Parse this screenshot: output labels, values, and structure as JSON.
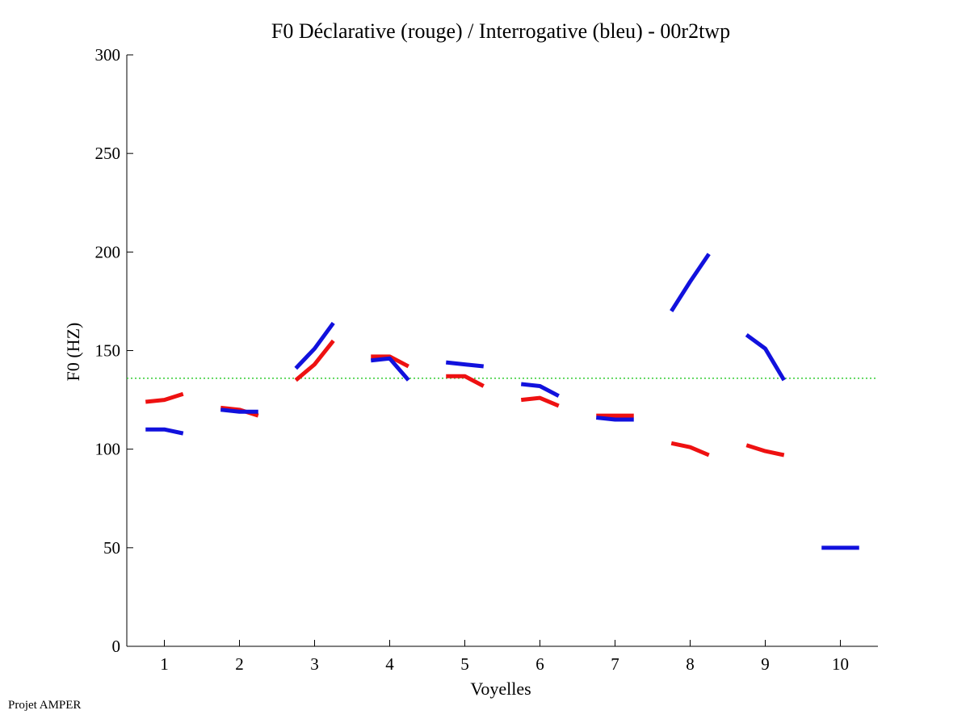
{
  "footer": "Projet AMPER",
  "chart_data": {
    "type": "line",
    "title": "F0 Déclarative (rouge) / Interrogative (bleu) - 00r2twp",
    "xlabel": "Voyelles",
    "ylabel": "F0 (HZ)",
    "xlim": [
      0.5,
      10.5
    ],
    "ylim": [
      0,
      300
    ],
    "x_ticks": [
      1,
      2,
      3,
      4,
      5,
      6,
      7,
      8,
      9,
      10
    ],
    "y_ticks": [
      0,
      50,
      100,
      150,
      200,
      250,
      300
    ],
    "grid": false,
    "reference_line": {
      "y": 136,
      "color": "#33cc33",
      "style": "dotted"
    },
    "series": [
      {
        "color": "#ee1111",
        "segments": [
          {
            "x": [
              0.75,
              1.0,
              1.25
            ],
            "y": [
              124,
              125,
              128
            ]
          },
          {
            "x": [
              1.75,
              2.0,
              2.25
            ],
            "y": [
              121,
              120,
              117
            ]
          },
          {
            "x": [
              2.75,
              3.0,
              3.25
            ],
            "y": [
              135,
              143,
              155
            ]
          },
          {
            "x": [
              3.75,
              4.0,
              4.25
            ],
            "y": [
              147,
              147,
              142
            ]
          },
          {
            "x": [
              4.75,
              5.0,
              5.25
            ],
            "y": [
              137,
              137,
              132
            ]
          },
          {
            "x": [
              5.75,
              6.0,
              6.25
            ],
            "y": [
              125,
              126,
              122
            ]
          },
          {
            "x": [
              6.75,
              7.0,
              7.25
            ],
            "y": [
              117,
              117,
              117
            ]
          },
          {
            "x": [
              7.75,
              8.0,
              8.25
            ],
            "y": [
              103,
              101,
              97
            ]
          },
          {
            "x": [
              8.75,
              9.0,
              9.25
            ],
            "y": [
              102,
              99,
              97
            ]
          }
        ]
      },
      {
        "color": "#1111dd",
        "segments": [
          {
            "x": [
              0.75,
              1.0,
              1.25
            ],
            "y": [
              110,
              110,
              108
            ]
          },
          {
            "x": [
              1.75,
              2.0,
              2.25
            ],
            "y": [
              120,
              119,
              119
            ]
          },
          {
            "x": [
              2.75,
              3.0,
              3.25
            ],
            "y": [
              141,
              151,
              164
            ]
          },
          {
            "x": [
              3.75,
              4.0,
              4.25
            ],
            "y": [
              145,
              146,
              135
            ]
          },
          {
            "x": [
              4.75,
              5.0,
              5.25
            ],
            "y": [
              144,
              143,
              142
            ]
          },
          {
            "x": [
              5.75,
              6.0,
              6.25
            ],
            "y": [
              133,
              132,
              127
            ]
          },
          {
            "x": [
              6.75,
              7.0,
              7.25
            ],
            "y": [
              116,
              115,
              115
            ]
          },
          {
            "x": [
              7.75,
              8.0,
              8.25
            ],
            "y": [
              170,
              185,
              199
            ]
          },
          {
            "x": [
              8.75,
              9.0,
              9.25
            ],
            "y": [
              158,
              151,
              135
            ]
          },
          {
            "x": [
              9.75,
              10.0,
              10.25
            ],
            "y": [
              50,
              50,
              50
            ]
          }
        ]
      }
    ]
  }
}
